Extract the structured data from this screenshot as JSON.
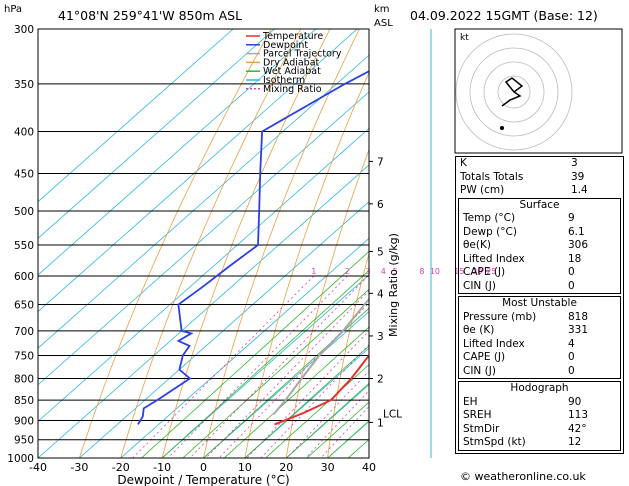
{
  "header": {
    "location": "41°08'N  259°41'W  850m  ASL",
    "datetime": "04.09.2022  15GMT  (Base: 12)",
    "hpa_label": "hPa",
    "km_label": "km",
    "asl_label": "ASL"
  },
  "legend": [
    "Temperature",
    "Dewpoint",
    "Parcel Trajectory",
    "Dry Adiabat",
    "Wet Adiabat",
    "Isotherm",
    "Mixing Ratio"
  ],
  "colors": {
    "temperature": "#e83030",
    "dewpoint": "#2a40e0",
    "parcel": "#a8a8a8",
    "dry_adiabat": "#e8a040",
    "wet_adiabat": "#30b830",
    "isotherm": "#30b8e0",
    "mixing_ratio": "#e040b0"
  },
  "chart_data": {
    "type": "line",
    "xlabel": "Dewpoint / Temperature (°C)",
    "ylabel": "Mixing Ratio (g/kg)",
    "x_ticks": [
      -40,
      -30,
      -20,
      -10,
      0,
      10,
      20,
      30,
      40
    ],
    "pressure_levels": [
      300,
      350,
      400,
      450,
      500,
      550,
      600,
      650,
      700,
      750,
      800,
      850,
      900,
      950,
      1000
    ],
    "km_ticks": [
      {
        "km": "1",
        "p": 905
      },
      {
        "km": "2",
        "p": 800
      },
      {
        "km": "3",
        "p": 710
      },
      {
        "km": "4",
        "p": 630
      },
      {
        "km": "5",
        "p": 560
      },
      {
        "km": "6",
        "p": 490
      },
      {
        "km": "7",
        "p": 435
      }
    ],
    "lcl_label": "LCL",
    "lcl_p": 885,
    "mixing_ratio_labels": [
      "1",
      "2",
      "3",
      "4",
      "5",
      "8",
      "10",
      "15",
      "20",
      "25"
    ],
    "series": [
      {
        "name": "Temperature",
        "points": [
          [
            300,
            -30
          ],
          [
            350,
            -21
          ],
          [
            400,
            -12
          ],
          [
            450,
            -6
          ],
          [
            500,
            -1
          ],
          [
            550,
            2
          ],
          [
            600,
            6
          ],
          [
            650,
            9
          ],
          [
            700,
            12
          ],
          [
            720,
            10
          ],
          [
            750,
            12
          ],
          [
            800,
            14
          ],
          [
            850,
            15
          ],
          [
            880,
            12
          ],
          [
            910,
            8
          ]
        ]
      },
      {
        "name": "Dewpoint",
        "points": [
          [
            300,
            -56
          ],
          [
            320,
            -62
          ],
          [
            350,
            -68
          ],
          [
            400,
            -75
          ],
          [
            450,
            -64
          ],
          [
            500,
            -54
          ],
          [
            550,
            -45
          ],
          [
            580,
            -46
          ],
          [
            620,
            -47
          ],
          [
            650,
            -48
          ],
          [
            700,
            -40
          ],
          [
            705,
            -37
          ],
          [
            720,
            -38
          ],
          [
            730,
            -34
          ],
          [
            750,
            -33
          ],
          [
            780,
            -30
          ],
          [
            800,
            -25
          ],
          [
            850,
            -27
          ],
          [
            870,
            -28
          ],
          [
            890,
            -26
          ],
          [
            910,
            -25
          ]
        ]
      },
      {
        "name": "Parcel Trajectory",
        "points": [
          [
            300,
            -30
          ],
          [
            350,
            -23
          ],
          [
            400,
            -19
          ],
          [
            450,
            -14
          ],
          [
            500,
            -11
          ],
          [
            550,
            -7
          ],
          [
            600,
            -5
          ],
          [
            650,
            -3
          ],
          [
            700,
            -1
          ],
          [
            750,
            0
          ],
          [
            800,
            2
          ],
          [
            850,
            4
          ],
          [
            885,
            5
          ]
        ]
      }
    ]
  },
  "hodograph": {
    "label": "kt",
    "rings": [
      "40",
      "30",
      "20",
      "10"
    ]
  },
  "indices": [
    {
      "label": "K",
      "value": "3"
    },
    {
      "label": "Totals Totals",
      "value": "39"
    },
    {
      "label": "PW (cm)",
      "value": "1.4"
    }
  ],
  "surface": {
    "title": "Surface",
    "rows": [
      {
        "label": "Temp (°C)",
        "value": "9"
      },
      {
        "label": "Dewp (°C)",
        "value": "6.1"
      },
      {
        "label": "θe(K)",
        "value": "306"
      },
      {
        "label": "Lifted Index",
        "value": "18"
      },
      {
        "label": "CAPE (J)",
        "value": "0"
      },
      {
        "label": "CIN (J)",
        "value": "0"
      }
    ]
  },
  "most_unstable": {
    "title": "Most Unstable",
    "rows": [
      {
        "label": "Pressure (mb)",
        "value": "818"
      },
      {
        "label": "θe (K)",
        "value": "331"
      },
      {
        "label": "Lifted Index",
        "value": "4"
      },
      {
        "label": "CAPE (J)",
        "value": "0"
      },
      {
        "label": "CIN (J)",
        "value": "0"
      }
    ]
  },
  "hodograph_table": {
    "title": "Hodograph",
    "rows": [
      {
        "label": "EH",
        "value": "90"
      },
      {
        "label": "SREH",
        "value": "113"
      },
      {
        "label": "StmDir",
        "value": "42°"
      },
      {
        "label": "StmSpd (kt)",
        "value": "12"
      }
    ]
  },
  "footer": "© weatheronline.co.uk"
}
